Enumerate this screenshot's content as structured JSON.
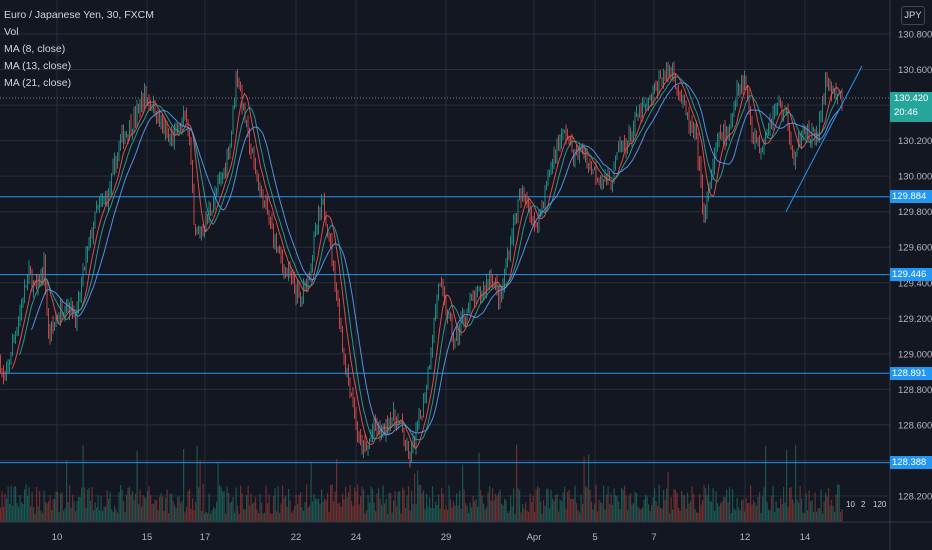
{
  "legend": {
    "symbol": "Euro / Japanese Yen, 30, FXCM",
    "vol": "Vol",
    "ma8": "MA (8, close)",
    "ma13": "MA (13, close)",
    "ma21": "MA (21, close)"
  },
  "currency": "JPY",
  "last_price": {
    "value": "130.420",
    "countdown": "20:46"
  },
  "colors": {
    "background": "#131722",
    "up": "#26a69a",
    "down": "#ef5350",
    "hline": "#2196f3",
    "trendline": "#2196f3",
    "grid": "#2a2e39",
    "ma8": "#ef5350",
    "ma13": "#26a69a",
    "ma21": "#5b9cf6"
  },
  "chart_data": {
    "type": "line",
    "title": "Euro / Japanese Yen, 30, FXCM",
    "y_ticks": [
      "130.800",
      "130.600",
      "130.400",
      "130.200",
      "130.000",
      "129.800",
      "129.600",
      "129.400",
      "129.200",
      "129.000",
      "128.800",
      "128.600",
      "128.400",
      "128.200"
    ],
    "ylim": [
      128.1,
      130.9
    ],
    "x_ticks": [
      "10",
      "15",
      "17",
      "22",
      "24",
      "29",
      "Apr",
      "5",
      "7",
      "12",
      "14"
    ],
    "price_path": [
      [
        0,
        128.95
      ],
      [
        4,
        128.82
      ],
      [
        12,
        129.05
      ],
      [
        20,
        129.25
      ],
      [
        28,
        129.45
      ],
      [
        36,
        129.35
      ],
      [
        44,
        129.5
      ],
      [
        48,
        129.1
      ],
      [
        56,
        129.2
      ],
      [
        66,
        129.3
      ],
      [
        76,
        129.2
      ],
      [
        84,
        129.5
      ],
      [
        96,
        129.8
      ],
      [
        108,
        129.9
      ],
      [
        120,
        130.2
      ],
      [
        132,
        130.3
      ],
      [
        144,
        130.45
      ],
      [
        152,
        130.4
      ],
      [
        160,
        130.3
      ],
      [
        168,
        130.2
      ],
      [
        178,
        130.25
      ],
      [
        186,
        130.35
      ],
      [
        190,
        130.1
      ],
      [
        194,
        129.65
      ],
      [
        202,
        129.7
      ],
      [
        212,
        129.85
      ],
      [
        222,
        130.0
      ],
      [
        230,
        130.2
      ],
      [
        236,
        130.6
      ],
      [
        242,
        130.4
      ],
      [
        248,
        130.2
      ],
      [
        258,
        129.95
      ],
      [
        266,
        129.8
      ],
      [
        274,
        129.65
      ],
      [
        282,
        129.5
      ],
      [
        292,
        129.4
      ],
      [
        300,
        129.3
      ],
      [
        308,
        129.45
      ],
      [
        316,
        129.7
      ],
      [
        322,
        129.85
      ],
      [
        328,
        129.7
      ],
      [
        336,
        129.35
      ],
      [
        344,
        128.95
      ],
      [
        352,
        128.75
      ],
      [
        358,
        128.5
      ],
      [
        366,
        128.45
      ],
      [
        374,
        128.6
      ],
      [
        382,
        128.55
      ],
      [
        390,
        128.65
      ],
      [
        400,
        128.6
      ],
      [
        408,
        128.4
      ],
      [
        416,
        128.55
      ],
      [
        424,
        128.75
      ],
      [
        432,
        129.1
      ],
      [
        438,
        129.4
      ],
      [
        446,
        129.25
      ],
      [
        454,
        129.05
      ],
      [
        462,
        129.2
      ],
      [
        472,
        129.3
      ],
      [
        482,
        129.35
      ],
      [
        490,
        129.45
      ],
      [
        500,
        129.3
      ],
      [
        510,
        129.65
      ],
      [
        518,
        129.85
      ],
      [
        526,
        129.9
      ],
      [
        534,
        129.7
      ],
      [
        542,
        129.85
      ],
      [
        550,
        130.05
      ],
      [
        558,
        130.2
      ],
      [
        566,
        130.25
      ],
      [
        574,
        130.1
      ],
      [
        582,
        130.15
      ],
      [
        590,
        130.05
      ],
      [
        600,
        130.0
      ],
      [
        610,
        129.95
      ],
      [
        618,
        130.15
      ],
      [
        628,
        130.2
      ],
      [
        638,
        130.35
      ],
      [
        648,
        130.4
      ],
      [
        660,
        130.55
      ],
      [
        672,
        130.6
      ],
      [
        680,
        130.45
      ],
      [
        688,
        130.3
      ],
      [
        696,
        130.2
      ],
      [
        704,
        129.75
      ],
      [
        712,
        130.05
      ],
      [
        720,
        130.25
      ],
      [
        728,
        130.2
      ],
      [
        736,
        130.5
      ],
      [
        744,
        130.55
      ],
      [
        752,
        130.25
      ],
      [
        760,
        130.15
      ],
      [
        768,
        130.3
      ],
      [
        778,
        130.4
      ],
      [
        786,
        130.35
      ],
      [
        794,
        130.05
      ],
      [
        802,
        130.3
      ],
      [
        810,
        130.2
      ],
      [
        818,
        130.25
      ],
      [
        826,
        130.55
      ],
      [
        834,
        130.45
      ],
      [
        842,
        130.42
      ]
    ],
    "horizontal_levels": [
      {
        "price": 129.884,
        "label": "129.884"
      },
      {
        "price": 129.446,
        "label": "129.446"
      },
      {
        "price": 128.891,
        "label": "128.891"
      },
      {
        "price": 128.388,
        "label": "128.388"
      }
    ],
    "trendline": {
      "from": {
        "x_index": 786,
        "price": 129.8
      },
      "to": {
        "x_index": 862,
        "price": 130.62
      }
    },
    "volume_badges": [
      "10",
      "2",
      "120"
    ],
    "grid": true
  }
}
